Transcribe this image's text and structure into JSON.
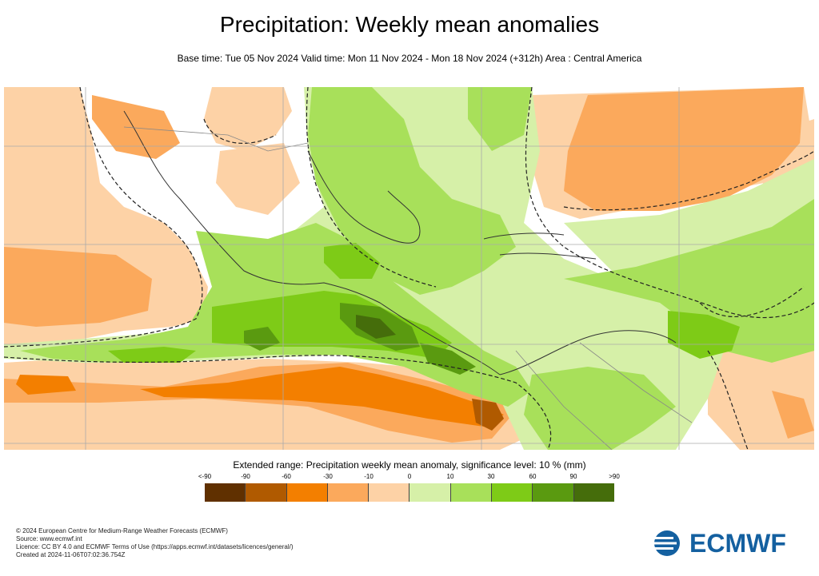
{
  "header": {
    "title": "Precipitation: Weekly mean anomalies",
    "subtitle": "Base time: Tue 05 Nov 2024 Valid time: Mon 11 Nov 2024 - Mon 18 Nov 2024 (+312h) Area : Central America"
  },
  "legend": {
    "title": "Extended range: Precipitation weekly mean anomaly, significance level: 10 % (mm)",
    "ticks": [
      "<-90",
      "-90",
      "-60",
      "-30",
      "-10",
      "0",
      "10",
      "30",
      "60",
      "90",
      ">90"
    ],
    "colors": [
      "#603000",
      "#b05a00",
      "#f37f00",
      "#fba95c",
      "#fdd2a6",
      "#d6f0a8",
      "#a8e05a",
      "#7ecb17",
      "#5a9a10",
      "#456d0b"
    ]
  },
  "footer": {
    "line1": "© 2024 European Centre for Medium-Range Weather Forecasts (ECMWF)",
    "line2": "Source: www.ecmwf.int",
    "line3": "Licence: CC BY 4.0 and ECMWF Terms of Use (https://apps.ecmwf.int/datasets/licences/general/)",
    "line4": "Created at 2024-11-06T07:02:36.754Z"
  },
  "logo": {
    "text": "ECMWF",
    "color": "#1460a0"
  }
}
